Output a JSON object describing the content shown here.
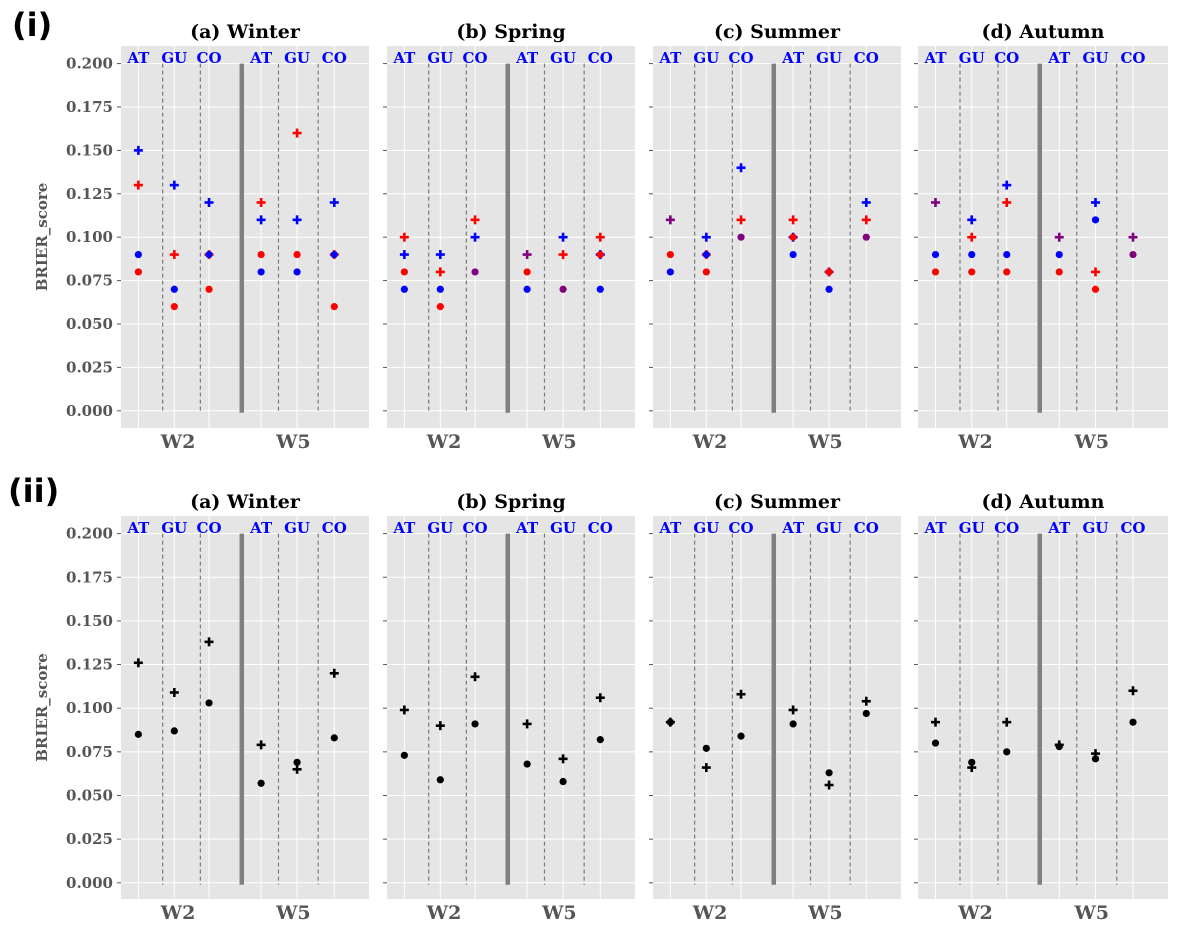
{
  "chart_data": [
    {
      "row_label": "(i)",
      "type": "scatter",
      "ylabel": "BRIER_score",
      "ylim": [
        -0.01,
        0.21
      ],
      "yticks": [
        0.0,
        0.025,
        0.05,
        0.075,
        0.1,
        0.125,
        0.15,
        0.175,
        0.2
      ],
      "ytick_labels": [
        "0.000",
        "0.025",
        "0.050",
        "0.075",
        "0.100",
        "0.125",
        "0.150",
        "0.175",
        "0.200"
      ],
      "groups": [
        "W2",
        "W5"
      ],
      "categories": [
        "AT",
        "GU",
        "CO",
        "AT",
        "GU",
        "CO"
      ],
      "colors": {
        "red": "#ff0000",
        "blue": "#0000ff",
        "purple": "#800080",
        "black": "#000000",
        "category_text": "#0000ff",
        "panel_bg": "#e5e5e5"
      },
      "panels": [
        {
          "title": "(a) Winter",
          "series": [
            {
              "name": "plus-blue",
              "marker": "plus",
              "color": "blue",
              "values": [
                0.15,
                0.13,
                0.12,
                0.11,
                0.11,
                0.12
              ]
            },
            {
              "name": "plus-red",
              "marker": "plus",
              "color": "red",
              "values": [
                0.13,
                0.09,
                0.09,
                0.12,
                0.16,
                0.09
              ]
            },
            {
              "name": "dot-blue",
              "marker": "dot",
              "color": "blue",
              "values": [
                0.09,
                0.07,
                0.09,
                0.08,
                0.08,
                0.09
              ]
            },
            {
              "name": "dot-red",
              "marker": "dot",
              "color": "red",
              "values": [
                0.08,
                0.06,
                0.07,
                0.09,
                0.09,
                0.06
              ]
            }
          ]
        },
        {
          "title": "(b) Spring",
          "series": [
            {
              "name": "plus-blue",
              "marker": "plus",
              "color": "blue",
              "values": [
                0.09,
                0.09,
                0.1,
                0.09,
                0.1,
                0.09
              ]
            },
            {
              "name": "plus-red",
              "marker": "plus",
              "color": "red",
              "values": [
                0.1,
                0.08,
                0.11,
                0.09,
                0.09,
                0.1
              ]
            },
            {
              "name": "dot-blue",
              "marker": "dot",
              "color": "blue",
              "values": [
                0.07,
                0.07,
                0.08,
                0.07,
                0.07,
                0.07
              ]
            },
            {
              "name": "dot-red",
              "marker": "dot",
              "color": "red",
              "values": [
                0.08,
                0.06,
                0.08,
                0.08,
                0.07,
                0.09
              ]
            }
          ]
        },
        {
          "title": "(c) Summer",
          "series": [
            {
              "name": "plus-blue",
              "marker": "plus",
              "color": "blue",
              "values": [
                0.11,
                0.1,
                0.14,
                0.1,
                0.08,
                0.12
              ]
            },
            {
              "name": "plus-red",
              "marker": "plus",
              "color": "red",
              "values": [
                0.11,
                0.09,
                0.11,
                0.11,
                0.08,
                0.11
              ]
            },
            {
              "name": "dot-blue",
              "marker": "dot",
              "color": "blue",
              "values": [
                0.08,
                0.09,
                0.1,
                0.09,
                0.07,
                0.1
              ]
            },
            {
              "name": "dot-red",
              "marker": "dot",
              "color": "red",
              "values": [
                0.09,
                0.08,
                0.1,
                0.1,
                0.08,
                0.1
              ]
            }
          ]
        },
        {
          "title": "(d) Autumn",
          "series": [
            {
              "name": "plus-blue",
              "marker": "plus",
              "color": "blue",
              "values": [
                0.12,
                0.11,
                0.13,
                0.1,
                0.12,
                0.1
              ]
            },
            {
              "name": "plus-red",
              "marker": "plus",
              "color": "red",
              "values": [
                0.12,
                0.1,
                0.12,
                0.1,
                0.08,
                0.1
              ]
            },
            {
              "name": "dot-blue",
              "marker": "dot",
              "color": "blue",
              "values": [
                0.09,
                0.09,
                0.09,
                0.09,
                0.11,
                0.09
              ]
            },
            {
              "name": "dot-red",
              "marker": "dot",
              "color": "red",
              "values": [
                0.08,
                0.08,
                0.08,
                0.08,
                0.07,
                0.09
              ]
            }
          ]
        }
      ]
    },
    {
      "row_label": "(ii)",
      "type": "scatter",
      "ylabel": "BRIER_score",
      "ylim": [
        -0.01,
        0.21
      ],
      "yticks": [
        0.0,
        0.025,
        0.05,
        0.075,
        0.1,
        0.125,
        0.15,
        0.175,
        0.2
      ],
      "ytick_labels": [
        "0.000",
        "0.025",
        "0.050",
        "0.075",
        "0.100",
        "0.125",
        "0.150",
        "0.175",
        "0.200"
      ],
      "groups": [
        "W2",
        "W5"
      ],
      "categories": [
        "AT",
        "GU",
        "CO",
        "AT",
        "GU",
        "CO"
      ],
      "colors": {
        "red": "#ff0000",
        "blue": "#0000ff",
        "purple": "#800080",
        "black": "#000000",
        "category_text": "#0000ff",
        "panel_bg": "#e5e5e5"
      },
      "panels": [
        {
          "title": "(a) Winter",
          "series": [
            {
              "name": "plus-black",
              "marker": "plus",
              "color": "black",
              "values": [
                0.126,
                0.109,
                0.138,
                0.079,
                0.065,
                0.12
              ]
            },
            {
              "name": "dot-black",
              "marker": "dot",
              "color": "black",
              "values": [
                0.085,
                0.087,
                0.103,
                0.057,
                0.069,
                0.083
              ]
            }
          ]
        },
        {
          "title": "(b) Spring",
          "series": [
            {
              "name": "plus-black",
              "marker": "plus",
              "color": "black",
              "values": [
                0.099,
                0.09,
                0.118,
                0.091,
                0.071,
                0.106
              ]
            },
            {
              "name": "dot-black",
              "marker": "dot",
              "color": "black",
              "values": [
                0.073,
                0.059,
                0.091,
                0.068,
                0.058,
                0.082
              ]
            }
          ]
        },
        {
          "title": "(c) Summer",
          "series": [
            {
              "name": "plus-black",
              "marker": "plus",
              "color": "black",
              "values": [
                0.092,
                0.066,
                0.108,
                0.099,
                0.056,
                0.104
              ]
            },
            {
              "name": "dot-black",
              "marker": "dot",
              "color": "black",
              "values": [
                0.092,
                0.077,
                0.084,
                0.091,
                0.063,
                0.097
              ]
            }
          ]
        },
        {
          "title": "(d) Autumn",
          "series": [
            {
              "name": "plus-black",
              "marker": "plus",
              "color": "black",
              "values": [
                0.092,
                0.066,
                0.092,
                0.079,
                0.074,
                0.11
              ]
            },
            {
              "name": "dot-black",
              "marker": "dot",
              "color": "black",
              "values": [
                0.08,
                0.069,
                0.075,
                0.078,
                0.071,
                0.092
              ]
            }
          ]
        }
      ]
    }
  ]
}
